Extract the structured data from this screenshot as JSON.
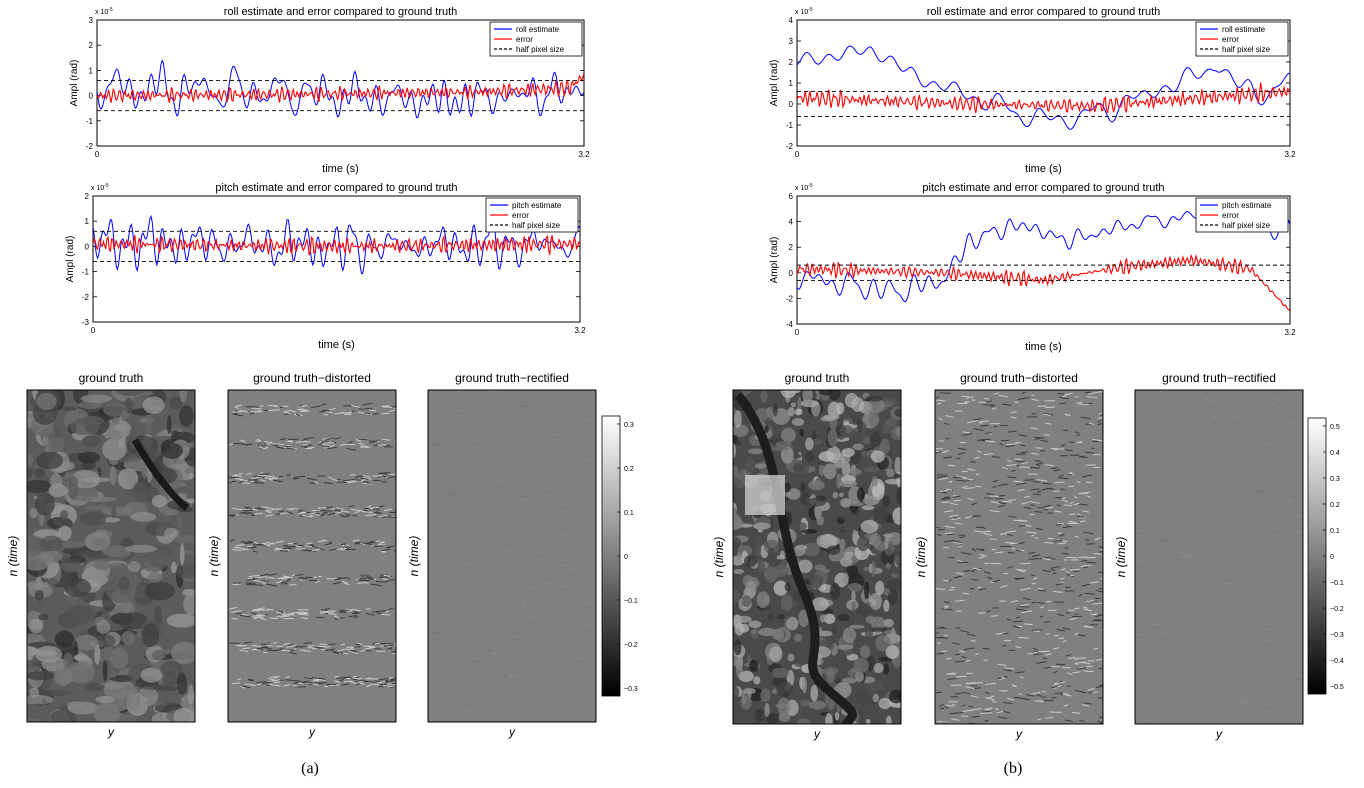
{
  "panels": [
    {
      "caption": "(a)",
      "plots": [
        {
          "title": "roll estimate and error compared to ground truth",
          "xlabel": "time (s)",
          "ylabel": "Ampl (rad)",
          "exponent": "x 10",
          "exponent_power": "-5",
          "xlim": [
            0,
            3.2
          ],
          "ylim": [
            -2,
            3
          ],
          "xticks": [
            "0",
            "3.2"
          ],
          "yticks": [
            "-2",
            "-1",
            "0",
            "1",
            "2",
            "3"
          ],
          "half_pixel": 0.6,
          "legend": [
            "roll estimate",
            "error",
            "half pixel size"
          ],
          "est_seed": 11,
          "est_amp": 0.8,
          "est_drift": [
            [
              0,
              0.3
            ],
            [
              0.3,
              0.2
            ],
            [
              0.7,
              -0.2
            ],
            [
              1,
              0.2
            ]
          ],
          "est_freq": 1.0,
          "err_seed": 23,
          "err_amp": 0.22,
          "err_drift": [
            [
              0,
              0.0
            ],
            [
              0.4,
              0.05
            ],
            [
              0.8,
              0.15
            ],
            [
              0.97,
              0.3
            ],
            [
              1,
              0.8
            ]
          ]
        },
        {
          "title": "pitch estimate and error compared to ground truth",
          "xlabel": "time (s)",
          "ylabel": "Ampl (rad)",
          "exponent": "x 10",
          "exponent_power": "-5",
          "xlim": [
            0,
            3.2
          ],
          "ylim": [
            -3,
            2
          ],
          "xticks": [
            "0",
            "3.2"
          ],
          "yticks": [
            "-3",
            "-2",
            "-1",
            "0",
            "1",
            "2"
          ],
          "half_pixel": 0.6,
          "legend": [
            "pitch estimate",
            "error",
            "half pixel size"
          ],
          "est_seed": 37,
          "est_amp": 0.85,
          "est_drift": [
            [
              0,
              0.2
            ],
            [
              0.5,
              0.0
            ],
            [
              1,
              0.1
            ]
          ],
          "est_freq": 1.0,
          "err_seed": 41,
          "err_amp": 0.2,
          "err_drift": [
            [
              0,
              0.1
            ],
            [
              0.5,
              0.0
            ],
            [
              1,
              0.1
            ]
          ]
        }
      ],
      "images": [
        {
          "title": "ground truth",
          "xlabel": "y",
          "ylabel": "n (time)"
        },
        {
          "title": "ground truth−distorted",
          "xlabel": "y",
          "ylabel": "n (time)"
        },
        {
          "title": "ground truth−rectified",
          "xlabel": "y",
          "ylabel": "n (time)"
        }
      ],
      "colorbar": [
        "0.3",
        "0.2",
        "0.1",
        "0",
        "−0.1",
        "−0.2",
        "−0.3"
      ]
    },
    {
      "caption": "(b)",
      "plots": [
        {
          "title": "roll estimate and error compared to ground truth",
          "xlabel": "time (s)",
          "ylabel": "Ampl (rad)",
          "exponent": "x 10",
          "exponent_power": "-5",
          "xlim": [
            0,
            3.2
          ],
          "ylim": [
            -2,
            4
          ],
          "xticks": [
            "0",
            "3.2"
          ],
          "yticks": [
            "-2",
            "-1",
            "0",
            "1",
            "2",
            "3",
            "4"
          ],
          "half_pixel": 0.6,
          "legend": [
            "roll estimate",
            "error",
            "half pixel size"
          ],
          "est_seed": 53,
          "est_amp": 0.6,
          "est_drift": [
            [
              0,
              2.0
            ],
            [
              0.15,
              2.6
            ],
            [
              0.25,
              1.2
            ],
            [
              0.4,
              0.0
            ],
            [
              0.5,
              -0.8
            ],
            [
              0.6,
              -0.5
            ],
            [
              0.75,
              0.8
            ],
            [
              0.85,
              1.8
            ],
            [
              0.93,
              0.4
            ],
            [
              1,
              1.0
            ]
          ],
          "est_freq": 0.55,
          "err_seed": 61,
          "err_amp": 0.25,
          "err_drift": [
            [
              0,
              0.3
            ],
            [
              0.35,
              0.0
            ],
            [
              0.6,
              -0.1
            ],
            [
              1,
              0.6
            ]
          ]
        },
        {
          "title": "pitch estimate and error compared to ground truth",
          "xlabel": "time (s)",
          "ylabel": "Ampl (rad)",
          "exponent": "x 10",
          "exponent_power": "-5",
          "xlim": [
            0,
            3.2
          ],
          "ylim": [
            -4,
            6
          ],
          "xticks": [
            "0",
            "3.2"
          ],
          "yticks": [
            "-4",
            "-2",
            "0",
            "2",
            "4",
            "6"
          ],
          "half_pixel": 0.6,
          "legend": [
            "pitch estimate",
            "error",
            "half pixel size"
          ],
          "est_seed": 71,
          "est_amp": 0.7,
          "est_drift": [
            [
              0,
              -0.3
            ],
            [
              0.2,
              -1.5
            ],
            [
              0.3,
              -0.5
            ],
            [
              0.35,
              2.5
            ],
            [
              0.45,
              3.8
            ],
            [
              0.55,
              2.5
            ],
            [
              0.7,
              4.0
            ],
            [
              0.85,
              4.5
            ],
            [
              1,
              3.5
            ]
          ],
          "est_freq": 0.6,
          "err_seed": 83,
          "err_amp": 0.3,
          "err_drift": [
            [
              0,
              0.3
            ],
            [
              0.3,
              0.0
            ],
            [
              0.5,
              -0.6
            ],
            [
              0.65,
              0.4
            ],
            [
              0.8,
              1.0
            ],
            [
              0.92,
              0.3
            ],
            [
              1,
              -3.0
            ]
          ]
        }
      ],
      "images": [
        {
          "title": "ground truth",
          "xlabel": "y",
          "ylabel": "n (time)"
        },
        {
          "title": "ground truth−distorted",
          "xlabel": "y",
          "ylabel": "n (time)"
        },
        {
          "title": "ground truth−rectified",
          "xlabel": "y",
          "ylabel": "n (time)"
        }
      ],
      "colorbar": [
        "0.5",
        "0.4",
        "0.3",
        "0.2",
        "0.1",
        "0",
        "−0.1",
        "−0.2",
        "−0.3",
        "−0.4",
        "−0.5"
      ]
    }
  ],
  "colors": {
    "estimate": "#0000ff",
    "error": "#ff0000",
    "half_pixel": "#000000",
    "image_bg_mid": "#808080"
  },
  "chart_data": [
    {
      "type": "line",
      "panel": "(a)",
      "title": "roll estimate and error compared to ground truth",
      "xlabel": "time (s)",
      "ylabel": "Ampl (rad)",
      "xlim": [
        0,
        3.2
      ],
      "ylim": [
        -2,
        3
      ],
      "series": [
        {
          "name": "roll estimate"
        },
        {
          "name": "error"
        },
        {
          "name": "half pixel size",
          "values": [
            0.6,
            -0.6
          ]
        }
      ]
    },
    {
      "type": "line",
      "panel": "(a)",
      "title": "pitch estimate and error compared to ground truth",
      "xlabel": "time (s)",
      "ylabel": "Ampl (rad)",
      "xlim": [
        0,
        3.2
      ],
      "ylim": [
        -3,
        2
      ],
      "series": [
        {
          "name": "pitch estimate"
        },
        {
          "name": "error"
        },
        {
          "name": "half pixel size",
          "values": [
            0.6,
            -0.6
          ]
        }
      ]
    },
    {
      "type": "line",
      "panel": "(b)",
      "title": "roll estimate and error compared to ground truth",
      "xlabel": "time (s)",
      "ylabel": "Ampl (rad)",
      "xlim": [
        0,
        3.2
      ],
      "ylim": [
        -2,
        4
      ],
      "series": [
        {
          "name": "roll estimate"
        },
        {
          "name": "error"
        },
        {
          "name": "half pixel size",
          "values": [
            0.6,
            -0.6
          ]
        }
      ]
    },
    {
      "type": "line",
      "panel": "(b)",
      "title": "pitch estimate and error compared to ground truth",
      "xlabel": "time (s)",
      "ylabel": "Ampl (rad)",
      "xlim": [
        0,
        3.2
      ],
      "ylim": [
        -4,
        6
      ],
      "series": [
        {
          "name": "pitch estimate"
        },
        {
          "name": "error"
        },
        {
          "name": "half pixel size",
          "values": [
            0.6,
            -0.6
          ]
        }
      ]
    },
    {
      "type": "heatmap",
      "panel": "(a)",
      "colorbar_range": [
        -0.3,
        0.3
      ]
    },
    {
      "type": "heatmap",
      "panel": "(b)",
      "colorbar_range": [
        -0.5,
        0.5
      ]
    }
  ]
}
